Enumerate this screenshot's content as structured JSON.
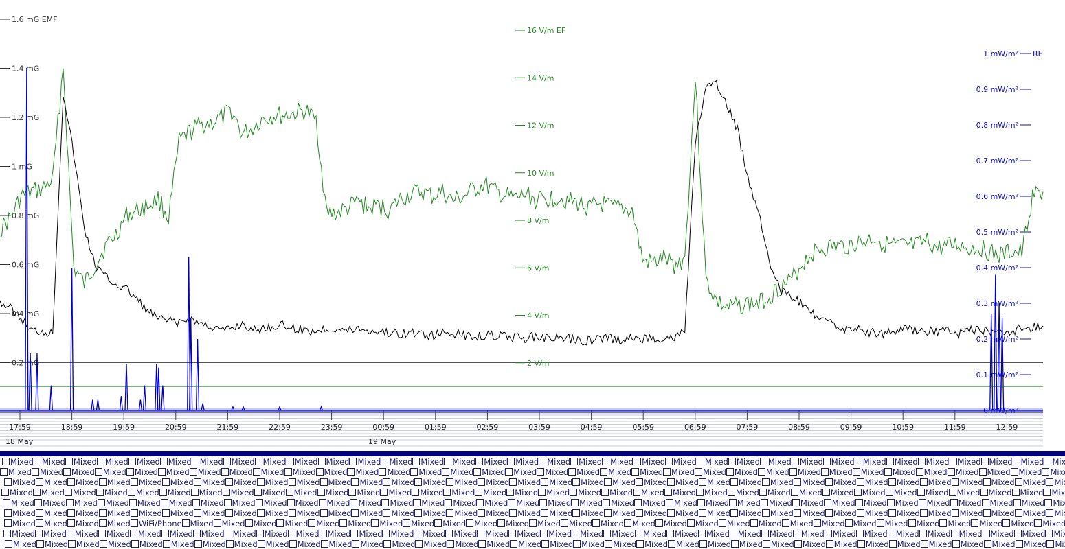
{
  "chart_data": {
    "type": "line",
    "x_ticks": [
      "17:59",
      "18:59",
      "19:59",
      "20:59",
      "21:59",
      "22:59",
      "23:59",
      "00:59",
      "01:59",
      "02:59",
      "03:59",
      "04:59",
      "05:59",
      "06:59",
      "07:59",
      "08:59",
      "09:59",
      "10:59",
      "11:59",
      "12:59"
    ],
    "date_labels": [
      "18 May",
      "19 May"
    ],
    "axes": {
      "emf": {
        "ticks": [
          "1.6 mG EMF",
          "1.4 mG",
          "1.2 mG",
          "1 mG",
          "0.8 mG",
          "0.6 mG",
          "0.4 mG",
          "0.2 mG"
        ],
        "range": [
          0,
          1.6
        ],
        "color": "#000000"
      },
      "ef": {
        "ticks": [
          "16 V/m EF",
          "14 V/m",
          "12 V/m",
          "10 V/m",
          "8 V/m",
          "6 V/m",
          "4 V/m",
          "2 V/m"
        ],
        "range": [
          0,
          16
        ],
        "color": "#228b22"
      },
      "rf": {
        "ticks": [
          "1 mW/m²",
          "0.9 mW/m²",
          "0.8 mW/m²",
          "0.7 mW/m²",
          "0.6 mW/m²",
          "0.5 mW/m²",
          "0.4 mW/m²",
          "0.3 mW/m²",
          "0.2 mW/m²",
          "0.1 mW/m²",
          "0 mW/m²"
        ],
        "tail_label": "RF",
        "range": [
          0,
          1
        ],
        "color": "#0000cc"
      }
    },
    "thresholds": {
      "emf": 0.2,
      "ef": 1.0
    },
    "series": [
      {
        "name": "EMF",
        "unit": "mG",
        "color": "#000000",
        "values": [
          0.45,
          0.42,
          0.38,
          0.33,
          0.33,
          0.32,
          1.3,
          1.05,
          0.75,
          0.6,
          0.55,
          0.52,
          0.5,
          0.46,
          0.41,
          0.38,
          0.37,
          0.36,
          0.38,
          0.36,
          0.35,
          0.33,
          0.34,
          0.36,
          0.33,
          0.34,
          0.35,
          0.35,
          0.34,
          0.33,
          0.33,
          0.34,
          0.34,
          0.33,
          0.34,
          0.33,
          0.33,
          0.32,
          0.32,
          0.32,
          0.32,
          0.31,
          0.32,
          0.32,
          0.31,
          0.31,
          0.31,
          0.31,
          0.31,
          0.3,
          0.3,
          0.31,
          0.3,
          0.3,
          0.3,
          0.29,
          0.29,
          0.3,
          0.3,
          0.29,
          0.3,
          0.3,
          0.3,
          0.3,
          0.3,
          0.33,
          1.1,
          1.32,
          1.33,
          1.25,
          1.15,
          0.95,
          0.82,
          0.62,
          0.5,
          0.47,
          0.44,
          0.4,
          0.37,
          0.36,
          0.34,
          0.34,
          0.33,
          0.32,
          0.32,
          0.33,
          0.34,
          0.33,
          0.33,
          0.33,
          0.33,
          0.32,
          0.33,
          0.33,
          0.33,
          0.32,
          0.33,
          0.34,
          0.34,
          0.35
        ]
      },
      {
        "name": "EF",
        "unit": "V/m",
        "color": "#228b22",
        "values": [
          7.6,
          8.1,
          9.0,
          9.2,
          9.3,
          9.7,
          14.5,
          6.0,
          5.3,
          6.1,
          6.9,
          7.4,
          8.2,
          8.4,
          8.6,
          8.9,
          8.1,
          11.3,
          11.7,
          12.0,
          12.1,
          12.3,
          12.6,
          11.6,
          11.9,
          12.3,
          12.4,
          12.4,
          12.5,
          12.6,
          12.2,
          8.3,
          8.3,
          8.5,
          8.8,
          8.5,
          8.6,
          8.4,
          8.9,
          9.1,
          9.2,
          9.0,
          9.2,
          8.8,
          9.0,
          9.3,
          9.5,
          9.2,
          9.0,
          8.9,
          9.1,
          8.8,
          8.9,
          9.0,
          8.8,
          8.7,
          8.5,
          8.7,
          8.5,
          8.5,
          8.4,
          6.3,
          6.2,
          6.4,
          6.1,
          6.4,
          14.0,
          5.5,
          4.6,
          4.3,
          4.4,
          4.5,
          4.5,
          4.8,
          5.2,
          5.4,
          6.1,
          6.6,
          6.8,
          6.9,
          6.9,
          7.0,
          7.1,
          7.3,
          7.0,
          6.9,
          6.9,
          6.9,
          7.1,
          6.8,
          6.9,
          7.0,
          6.8,
          6.9,
          6.6,
          6.5,
          6.7,
          6.6,
          9.0,
          9.2
        ]
      },
      {
        "name": "RF",
        "unit": "mW/m²",
        "color": "#0000cc",
        "spikes": [
          [
            0.13,
            0.96
          ],
          [
            0.2,
            0.16
          ],
          [
            0.33,
            0.16
          ],
          [
            0.6,
            0.07
          ],
          [
            1.0,
            0.4
          ],
          [
            1.4,
            0.03
          ],
          [
            1.5,
            0.03
          ],
          [
            1.95,
            0.04
          ],
          [
            2.05,
            0.13
          ],
          [
            2.32,
            0.03
          ],
          [
            2.4,
            0.07
          ],
          [
            2.63,
            0.13
          ],
          [
            2.67,
            0.12
          ],
          [
            2.75,
            0.07
          ],
          [
            3.25,
            0.43
          ],
          [
            3.29,
            0.26
          ],
          [
            3.42,
            0.2
          ],
          [
            3.52,
            0.02
          ],
          [
            4.1,
            0.01
          ],
          [
            4.3,
            0.01
          ],
          [
            5.0,
            0.01
          ],
          [
            5.8,
            0.01
          ],
          [
            18.7,
            0.27
          ],
          [
            18.78,
            0.38
          ],
          [
            18.85,
            0.3
          ],
          [
            18.91,
            0.26
          ]
        ]
      }
    ]
  },
  "legend": {
    "row_counts": [
      45,
      46,
      45,
      44,
      45,
      45,
      46,
      45,
      45
    ],
    "row_offsets": [
      3,
      0,
      6,
      2,
      4,
      6,
      6,
      5,
      7
    ],
    "cell_label": "Mixed",
    "special": {
      "row": 6,
      "col": 4,
      "label": "WiFi/Phone"
    }
  }
}
